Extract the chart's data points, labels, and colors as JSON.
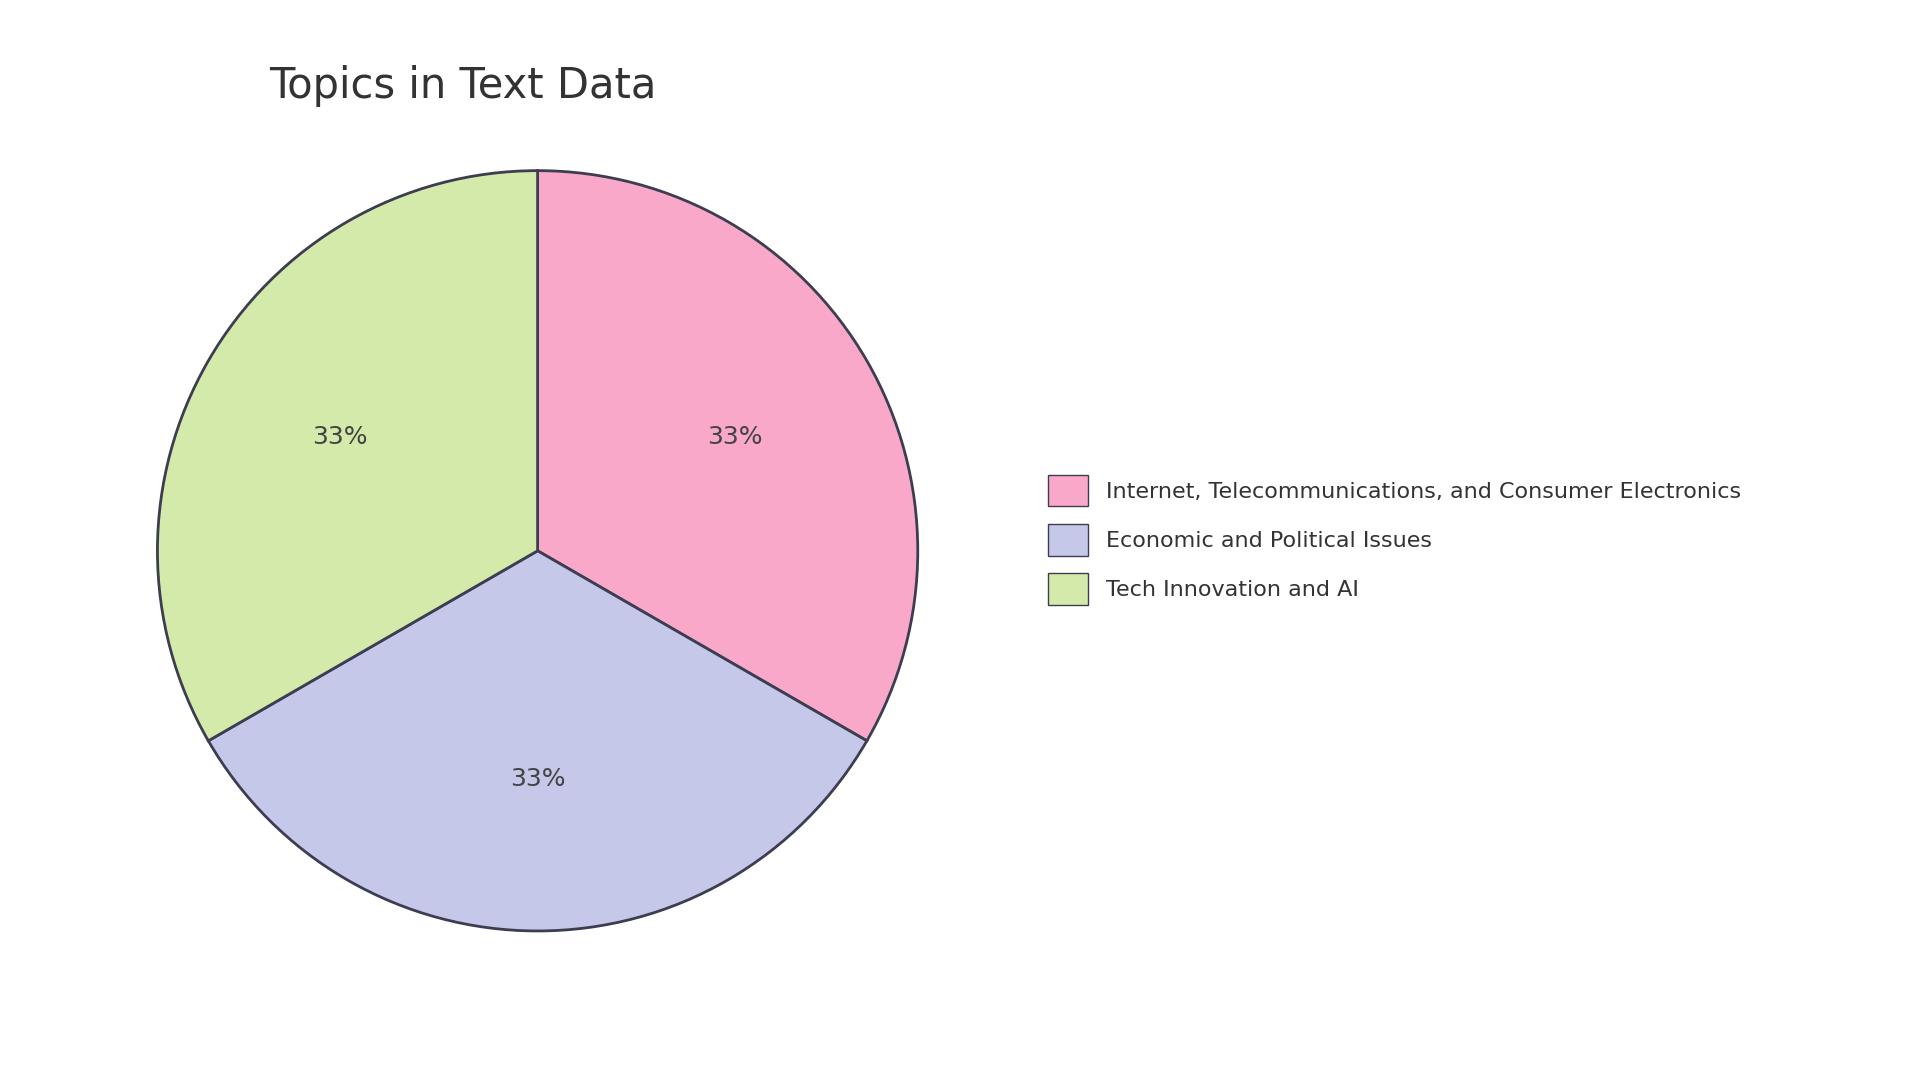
{
  "title": "Topics in Text Data",
  "labels": [
    "Internet, Telecommunications, and Consumer Electronics",
    "Economic and Political Issues",
    "Tech Innovation and AI"
  ],
  "values": [
    33.33,
    33.34,
    33.33
  ],
  "colors": [
    "#F9A8C9",
    "#C5C8E8",
    "#D4EAAA"
  ],
  "edge_color": "#3D3D52",
  "edge_width": 2.0,
  "title_fontsize": 30,
  "title_color": "#333333",
  "pct_fontsize": 18,
  "pct_color": "#444444",
  "background_color": "#FFFFFF",
  "legend_fontsize": 16,
  "startangle": 90,
  "pctdistance": 0.6
}
